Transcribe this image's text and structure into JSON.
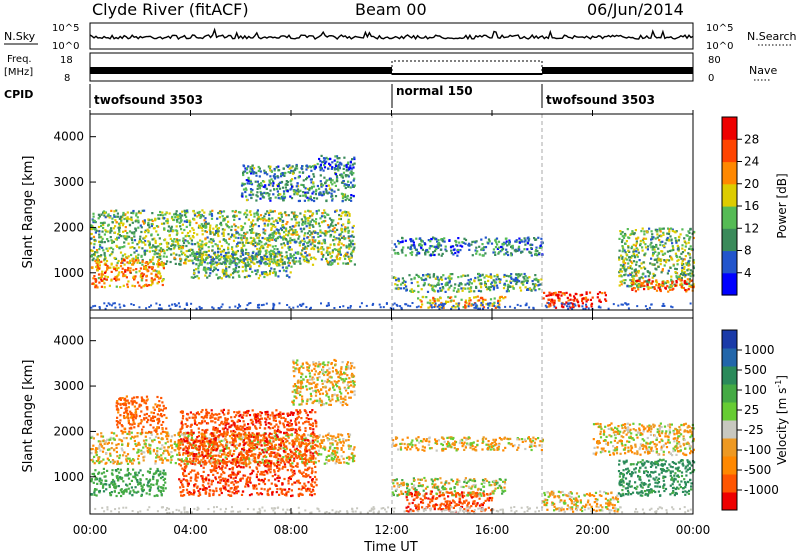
{
  "header": {
    "title": "Clyde River (fitACF)",
    "beam": "Beam 00",
    "date": "06/Jun/2014"
  },
  "status_panels": {
    "nsky_label": "N.Sky",
    "nsky_ticks": [
      "10^5",
      "10^0"
    ],
    "nsearch_label": "N.Search",
    "nsearch_ticks": [
      "10^5",
      "10^0"
    ],
    "freq_label_line1": "Freq.",
    "freq_label_line2": "[MHz]",
    "freq_ticks": [
      "18",
      "8"
    ],
    "nave_label": "Nave",
    "nave_ticks": [
      "80",
      "0"
    ],
    "cpid_label": "CPID",
    "cpid_segments": [
      {
        "label": "twofsound 3503",
        "start_hour": 0,
        "end_hour": 12
      },
      {
        "label": "normal 150",
        "start_hour": 12,
        "end_hour": 18
      },
      {
        "label": "twofsound 3503",
        "start_hour": 18,
        "end_hour": 24
      }
    ]
  },
  "x_axis": {
    "label": "Time UT",
    "ticks": [
      "00:00",
      "04:00",
      "08:00",
      "12:00",
      "16:00",
      "20:00",
      "00:00"
    ],
    "range_hours": [
      0,
      24
    ]
  },
  "power_colorbar": {
    "label": "Power [dB]",
    "ticks": [
      "28",
      "24",
      "20",
      "16",
      "12",
      "8",
      "4"
    ],
    "colors": [
      "#0000ff",
      "#2255cc",
      "#3a8a5a",
      "#55bb55",
      "#ddcc00",
      "#ff8800",
      "#ff4400",
      "#ee0000"
    ]
  },
  "velocity_colorbar": {
    "label": "Velocity [m s",
    "label_sup": "-1",
    "label_end": "]",
    "ticks": [
      "1000",
      "500",
      "100",
      "25",
      "-25",
      "-100",
      "-500",
      "-1000"
    ],
    "colors": [
      "#1a3aa8",
      "#2266aa",
      "#2a8a5a",
      "#44aa44",
      "#66cc33",
      "#c8c8c0",
      "#ee9922",
      "#ff8800",
      "#ff5500",
      "#ee0000"
    ]
  },
  "chart_data": [
    {
      "type": "heatmap",
      "title": "",
      "quantity": "Power [dB]",
      "xlabel": "Time UT",
      "ylabel": "Slant Range [km]",
      "y_ticks": [
        "1000",
        "2000",
        "3000",
        "4000"
      ],
      "xlim_hours": [
        0,
        24
      ],
      "ylim_km": [
        180,
        4500
      ],
      "colorscale_db": [
        0,
        32
      ],
      "regions": [
        {
          "t0": 0.0,
          "t1": 10.5,
          "r0": 1200,
          "r1": 2400,
          "value": 14
        },
        {
          "t0": 0.0,
          "t1": 3.0,
          "r0": 700,
          "r1": 1300,
          "value": 22
        },
        {
          "t0": 4.0,
          "t1": 8.0,
          "r0": 900,
          "r1": 1500,
          "value": 12
        },
        {
          "t0": 6.0,
          "t1": 10.5,
          "r0": 2600,
          "r1": 3400,
          "value": 10
        },
        {
          "t0": 9.0,
          "t1": 10.5,
          "r0": 3300,
          "r1": 3600,
          "value": 6
        },
        {
          "t0": 12.0,
          "t1": 18.0,
          "r0": 1400,
          "r1": 1800,
          "value": 9
        },
        {
          "t0": 12.0,
          "t1": 18.0,
          "r0": 600,
          "r1": 1000,
          "value": 12
        },
        {
          "t0": 13.0,
          "t1": 16.5,
          "r0": 250,
          "r1": 500,
          "value": 20
        },
        {
          "t0": 18.0,
          "t1": 20.5,
          "r0": 250,
          "r1": 600,
          "value": 28
        },
        {
          "t0": 21.0,
          "t1": 24.0,
          "r0": 700,
          "r1": 2000,
          "value": 14
        },
        {
          "t0": 21.5,
          "t1": 24.0,
          "r0": 600,
          "r1": 900,
          "value": 24
        }
      ]
    },
    {
      "type": "heatmap",
      "title": "",
      "quantity": "Velocity [m s^-1]",
      "xlabel": "Time UT",
      "ylabel": "Slant Range [km]",
      "y_ticks": [
        "1000",
        "2000",
        "3000",
        "4000"
      ],
      "xlim_hours": [
        0,
        24
      ],
      "ylim_km": [
        180,
        4500
      ],
      "colorscale_ms": [
        -1000,
        1000
      ],
      "regions": [
        {
          "t0": 0.0,
          "t1": 10.5,
          "r0": 1300,
          "r1": 2000,
          "value": 0
        },
        {
          "t0": 0.0,
          "t1": 3.0,
          "r0": 600,
          "r1": 1200,
          "value": 200
        },
        {
          "t0": 1.0,
          "t1": 3.0,
          "r0": 2000,
          "r1": 2800,
          "value": -150
        },
        {
          "t0": 3.5,
          "t1": 9.0,
          "r0": 600,
          "r1": 2500,
          "value": -200
        },
        {
          "t0": 8.0,
          "t1": 10.5,
          "r0": 2600,
          "r1": 3600,
          "value": 0
        },
        {
          "t0": 12.0,
          "t1": 18.0,
          "r0": 1600,
          "r1": 1900,
          "value": 0
        },
        {
          "t0": 12.0,
          "t1": 16.5,
          "r0": 600,
          "r1": 1000,
          "value": 50
        },
        {
          "t0": 12.5,
          "t1": 16.0,
          "r0": 250,
          "r1": 700,
          "value": -200
        },
        {
          "t0": 18.0,
          "t1": 21.0,
          "r0": 250,
          "r1": 700,
          "value": 0
        },
        {
          "t0": 20.0,
          "t1": 24.0,
          "r0": 1500,
          "r1": 2200,
          "value": 0
        },
        {
          "t0": 21.0,
          "t1": 24.0,
          "r0": 600,
          "r1": 1400,
          "value": 300
        }
      ]
    }
  ]
}
